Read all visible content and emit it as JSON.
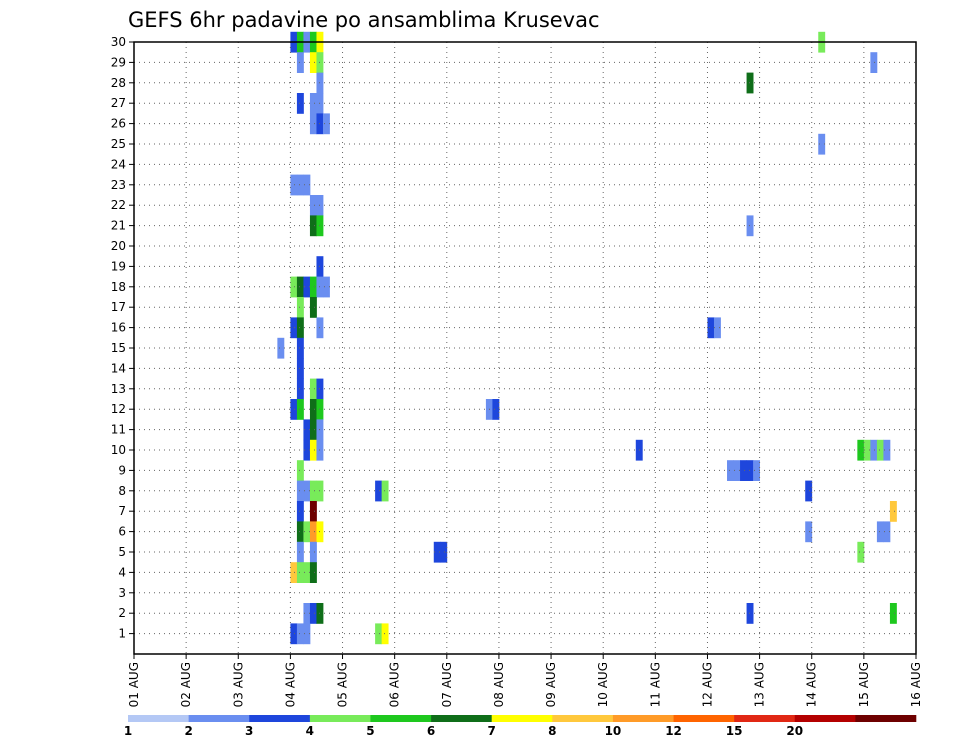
{
  "chart_data": {
    "type": "heatmap",
    "title": "GEFS 6hr padavine po ansamblima Krusevac",
    "xlabel": "",
    "ylabel": "",
    "x_tick_labels": [
      "01 AUG",
      "02 AUG",
      "03 AUG",
      "04 AUG",
      "05 AUG",
      "06 AUG",
      "07 AUG",
      "08 AUG",
      "09 AUG",
      "10 AUG",
      "11 AUG",
      "12 AUG",
      "13 AUG",
      "14 AUG",
      "15 AUG",
      "16 AUG"
    ],
    "y_tick_labels": [
      "1",
      "2",
      "3",
      "4",
      "5",
      "6",
      "7",
      "8",
      "9",
      "10",
      "11",
      "12",
      "13",
      "14",
      "15",
      "16",
      "17",
      "18",
      "19",
      "20",
      "21",
      "22",
      "23",
      "24",
      "25",
      "26",
      "27",
      "28",
      "29",
      "30"
    ],
    "x_unit": "days since 01 AUG",
    "ylim": [
      0,
      30
    ],
    "xlim": [
      0,
      15
    ],
    "grid": true,
    "colorbar": {
      "labels": [
        "1",
        "2",
        "3",
        "4",
        "5",
        "6",
        "7",
        "8",
        "10",
        "12",
        "15",
        "20"
      ],
      "colors": [
        "#b4c8f5",
        "#6a8ef0",
        "#1e46dc",
        "#78eb5a",
        "#1ec81e",
        "#0f6e19",
        "#ffff00",
        "#ffc83c",
        "#ff9b28",
        "#ff6400",
        "#e12814",
        "#b40000",
        "#6e0000"
      ]
    },
    "cells": [
      [
        3.0,
        30,
        2
      ],
      [
        3.125,
        30,
        4
      ],
      [
        3.25,
        30,
        1
      ],
      [
        3.375,
        30,
        4
      ],
      [
        3.5,
        30,
        6
      ],
      [
        3.125,
        29,
        1
      ],
      [
        3.375,
        29,
        6
      ],
      [
        3.5,
        29,
        3
      ],
      [
        3.5,
        28,
        1
      ],
      [
        3.125,
        27,
        2
      ],
      [
        3.375,
        27,
        1
      ],
      [
        3.5,
        27,
        1
      ],
      [
        3.375,
        26,
        1
      ],
      [
        3.5,
        26,
        2
      ],
      [
        3.625,
        26,
        1
      ],
      [
        3.0,
        23,
        1
      ],
      [
        3.125,
        23,
        1
      ],
      [
        3.25,
        23,
        1
      ],
      [
        3.375,
        22,
        1
      ],
      [
        3.5,
        22,
        1
      ],
      [
        3.375,
        21,
        5
      ],
      [
        3.5,
        21,
        4
      ],
      [
        3.5,
        19,
        2
      ],
      [
        3.0,
        18,
        3
      ],
      [
        3.125,
        18,
        5
      ],
      [
        3.25,
        18,
        2
      ],
      [
        3.375,
        18,
        4
      ],
      [
        3.5,
        18,
        1
      ],
      [
        3.625,
        18,
        1
      ],
      [
        3.125,
        17,
        3
      ],
      [
        3.375,
        17,
        5
      ],
      [
        3.0,
        16,
        2
      ],
      [
        3.125,
        16,
        5
      ],
      [
        3.5,
        16,
        1
      ],
      [
        2.75,
        15,
        1
      ],
      [
        3.125,
        15,
        2
      ],
      [
        3.125,
        14,
        2
      ],
      [
        3.125,
        13,
        2
      ],
      [
        3.375,
        13,
        3
      ],
      [
        3.5,
        13,
        2
      ],
      [
        3.0,
        12,
        2
      ],
      [
        3.125,
        12,
        4
      ],
      [
        3.375,
        12,
        5
      ],
      [
        3.5,
        12,
        4
      ],
      [
        3.25,
        11,
        2
      ],
      [
        3.375,
        11,
        5
      ],
      [
        3.5,
        11,
        1
      ],
      [
        3.25,
        10,
        2
      ],
      [
        3.375,
        10,
        6
      ],
      [
        3.5,
        10,
        1
      ],
      [
        3.125,
        9,
        3
      ],
      [
        3.125,
        8,
        1
      ],
      [
        3.25,
        8,
        1
      ],
      [
        3.375,
        8,
        3
      ],
      [
        3.5,
        8,
        3
      ],
      [
        3.125,
        7,
        2
      ],
      [
        3.375,
        7,
        12
      ],
      [
        3.125,
        6,
        5
      ],
      [
        3.25,
        6,
        3
      ],
      [
        3.375,
        6,
        8
      ],
      [
        3.5,
        6,
        6
      ],
      [
        3.125,
        5,
        1
      ],
      [
        3.375,
        5,
        1
      ],
      [
        3.0,
        4,
        7
      ],
      [
        3.125,
        4,
        3
      ],
      [
        3.25,
        4,
        3
      ],
      [
        3.375,
        4,
        5
      ],
      [
        3.25,
        2,
        1
      ],
      [
        3.375,
        2,
        2
      ],
      [
        3.5,
        2,
        5
      ],
      [
        3.0,
        1,
        2
      ],
      [
        3.125,
        1,
        1
      ],
      [
        3.25,
        1,
        1
      ],
      [
        4.625,
        1,
        3
      ],
      [
        4.75,
        1,
        6
      ],
      [
        4.625,
        8,
        2
      ],
      [
        4.75,
        8,
        3
      ],
      [
        5.75,
        5,
        2
      ],
      [
        5.875,
        5,
        2
      ],
      [
        6.75,
        12,
        1
      ],
      [
        6.875,
        12,
        2
      ],
      [
        9.625,
        10,
        2
      ],
      [
        11.0,
        16,
        2
      ],
      [
        11.125,
        16,
        1
      ],
      [
        11.375,
        9,
        1
      ],
      [
        11.5,
        9,
        1
      ],
      [
        11.625,
        9,
        2
      ],
      [
        11.75,
        9,
        2
      ],
      [
        11.875,
        9,
        1
      ],
      [
        11.75,
        28,
        5
      ],
      [
        11.75,
        21,
        1
      ],
      [
        11.75,
        2,
        2
      ],
      [
        12.875,
        8,
        2
      ],
      [
        12.875,
        6,
        1
      ],
      [
        13.125,
        30,
        3
      ],
      [
        13.125,
        25,
        1
      ],
      [
        13.875,
        10,
        4
      ],
      [
        14.0,
        10,
        3
      ],
      [
        14.125,
        10,
        1
      ],
      [
        14.25,
        10,
        3
      ],
      [
        14.375,
        10,
        1
      ],
      [
        13.875,
        5,
        3
      ],
      [
        14.125,
        29,
        1
      ],
      [
        14.25,
        6,
        1
      ],
      [
        14.375,
        6,
        1
      ],
      [
        14.5,
        7,
        7
      ],
      [
        14.5,
        2,
        4
      ]
    ]
  }
}
